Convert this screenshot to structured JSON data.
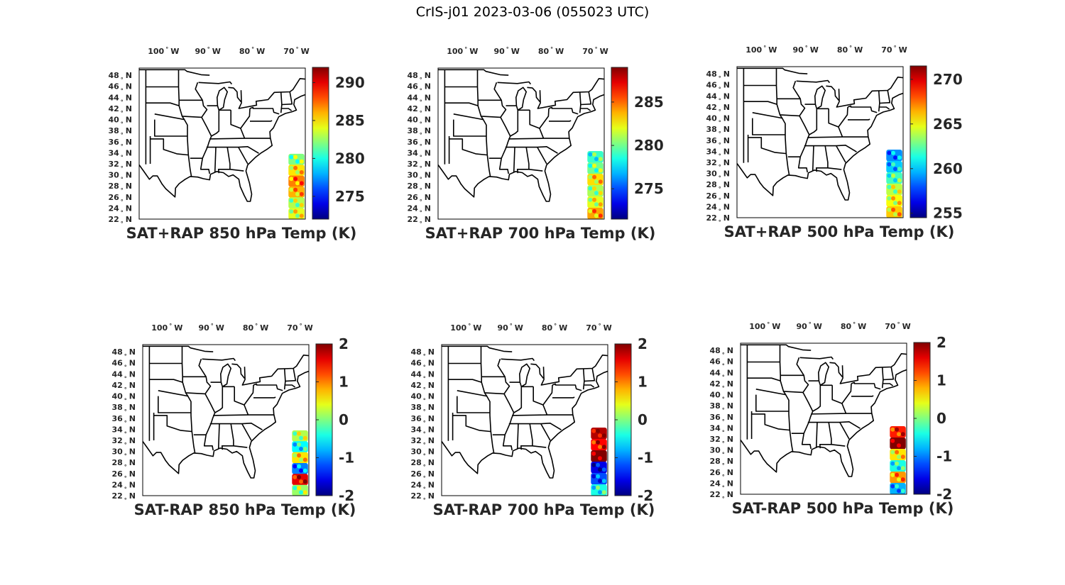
{
  "figure_title": "CrIS-j01 2023-03-06 (055023 UTC)",
  "panels": [
    {
      "caption": "SAT+RAP 850 hPa Temp (K)",
      "colorbar_ticks": [
        "290",
        "285",
        "280",
        "275"
      ],
      "colorbar_range": [
        272,
        292
      ],
      "swath": "lower",
      "swath_values": [
        282,
        285,
        287,
        286,
        283,
        284
      ]
    },
    {
      "caption": "SAT+RAP 700 hPa Temp (K)",
      "colorbar_ticks": [
        "285",
        "280",
        "275"
      ],
      "colorbar_range": [
        271.5,
        289
      ],
      "swath": "full",
      "swath_values": [
        279,
        280,
        283,
        281,
        282,
        284
      ]
    },
    {
      "caption": "SAT+RAP 500 hPa Temp (K)",
      "colorbar_ticks": [
        "270",
        "265",
        "260",
        "255"
      ],
      "colorbar_range": [
        254.5,
        271.5
      ],
      "swath": "full",
      "swath_values": [
        259,
        260,
        262,
        264,
        265,
        266
      ]
    },
    {
      "caption": "SAT-RAP 850 hPa Temp (K)",
      "colorbar_ticks": [
        "2",
        "1",
        "0",
        "-1",
        "-2"
      ],
      "colorbar_range": [
        -2,
        2
      ],
      "swath": "lower",
      "swath_values": [
        0.2,
        -0.5,
        0.6,
        -1.0,
        1.6,
        0.1
      ]
    },
    {
      "caption": "SAT-RAP 700 hPa Temp (K)",
      "colorbar_ticks": [
        "2",
        "1",
        "0",
        "-1",
        "-2"
      ],
      "colorbar_range": [
        -2,
        2
      ],
      "swath": "full",
      "swath_values": [
        1.8,
        1.5,
        2.0,
        -1.6,
        -1.2,
        -0.4
      ]
    },
    {
      "caption": "SAT-RAP 500 hPa Temp (K)",
      "colorbar_ticks": [
        "2",
        "1",
        "0",
        "-1",
        "-2"
      ],
      "colorbar_range": [
        -2,
        2
      ],
      "swath": "full",
      "swath_values": [
        1.4,
        2.0,
        0.6,
        -0.4,
        0.9,
        -0.8
      ]
    }
  ],
  "lon_labels": [
    "100",
    "90",
    "80",
    "70"
  ],
  "lon_suffix": "W",
  "lat_labels": [
    "48",
    "46",
    "44",
    "42",
    "40",
    "38",
    "36",
    "34",
    "32",
    "30",
    "28",
    "26",
    "24",
    "22"
  ],
  "lat_suffix": "N",
  "degree_symbol": "°",
  "colormap": "jet"
}
